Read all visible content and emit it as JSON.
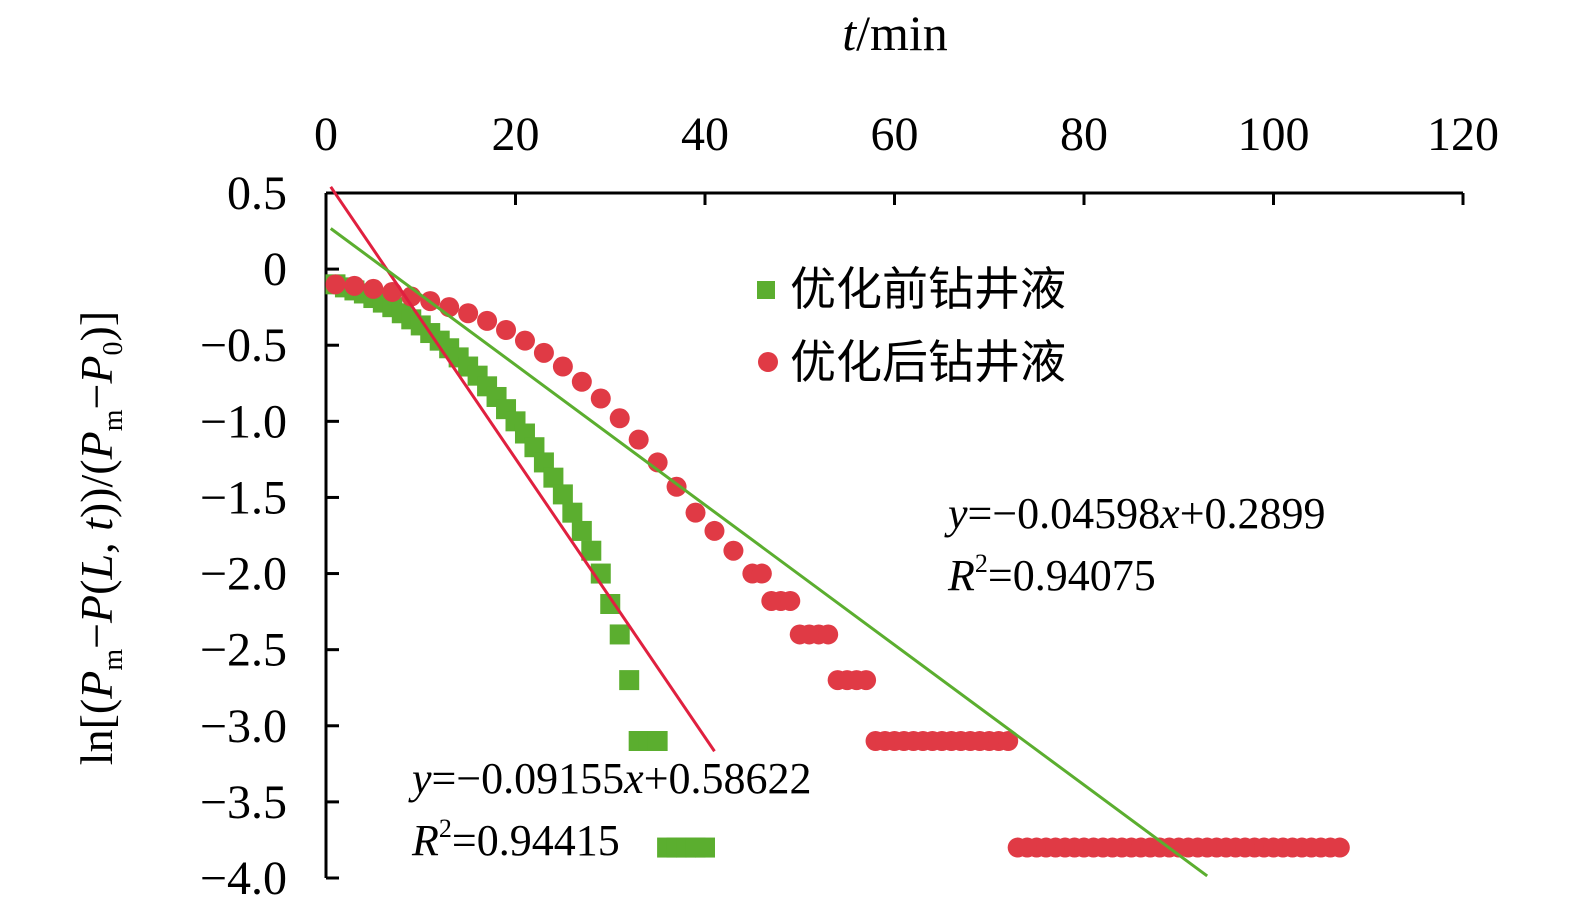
{
  "chart_data": {
    "type": "scatter",
    "xlabel_var": "t",
    "xlabel_unit": "/min",
    "ylabel": "ln[(P_m−P(L, t))/(P_m−P_0)]",
    "xlim": [
      0,
      120
    ],
    "ylim": [
      -4.0,
      0.5
    ],
    "x_ticks": [
      0,
      20,
      40,
      60,
      80,
      100,
      120
    ],
    "y_ticks": [
      0.5,
      0,
      -0.5,
      -1.0,
      -1.5,
      -2.0,
      -2.5,
      -3.0,
      -3.5,
      -4.0
    ],
    "y_tick_labels": [
      "0.5",
      "0",
      "−0.5",
      "−1.0",
      "−1.5",
      "−2.0",
      "−2.5",
      "−3.0",
      "−3.5",
      "−4.0"
    ],
    "x_axis_position": "top",
    "legend_position": "upper-middle",
    "series": [
      {
        "name": "优化前钻井液",
        "color": "#5BAE2F",
        "marker": "square",
        "x": [
          1,
          2,
          3,
          4,
          5,
          6,
          7,
          8,
          9,
          10,
          11,
          12,
          13,
          14,
          15,
          16,
          17,
          18,
          19,
          20,
          21,
          22,
          23,
          24,
          25,
          26,
          27,
          28,
          29,
          30,
          31,
          32,
          33,
          34,
          35,
          36,
          37,
          38,
          39,
          40
        ],
        "y": [
          -0.1,
          -0.12,
          -0.14,
          -0.16,
          -0.19,
          -0.22,
          -0.25,
          -0.29,
          -0.33,
          -0.37,
          -0.42,
          -0.47,
          -0.52,
          -0.58,
          -0.64,
          -0.7,
          -0.77,
          -0.84,
          -0.92,
          -1.0,
          -1.08,
          -1.17,
          -1.27,
          -1.37,
          -1.48,
          -1.6,
          -1.72,
          -1.85,
          -2.0,
          -2.2,
          -2.4,
          -2.7,
          -3.1,
          -3.1,
          -3.1,
          -3.8,
          -3.8,
          -3.8,
          -3.8,
          -3.8
        ]
      },
      {
        "name": "优化后钻井液",
        "color": "#E03A45",
        "marker": "circle",
        "x": [
          1,
          3,
          5,
          7,
          9,
          11,
          13,
          15,
          17,
          19,
          21,
          23,
          25,
          27,
          29,
          31,
          33,
          35,
          37,
          39,
          41,
          43,
          45,
          46,
          47,
          48,
          49,
          50,
          51,
          52,
          53,
          54,
          55,
          56,
          57,
          58,
          59,
          60,
          61,
          62,
          63,
          64,
          65,
          66,
          67,
          68,
          69,
          70,
          71,
          72,
          73,
          74,
          75,
          76,
          77,
          78,
          79,
          80,
          81,
          82,
          83,
          84,
          85,
          86,
          87,
          88,
          89,
          90,
          91,
          92,
          93,
          94,
          95,
          96,
          97,
          98,
          99,
          100,
          101,
          102,
          103,
          104,
          105,
          106,
          107
        ],
        "y": [
          -0.1,
          -0.11,
          -0.13,
          -0.15,
          -0.18,
          -0.21,
          -0.25,
          -0.29,
          -0.34,
          -0.4,
          -0.47,
          -0.55,
          -0.64,
          -0.74,
          -0.85,
          -0.98,
          -1.12,
          -1.27,
          -1.43,
          -1.6,
          -1.72,
          -1.85,
          -2.0,
          -2.0,
          -2.18,
          -2.18,
          -2.18,
          -2.4,
          -2.4,
          -2.4,
          -2.4,
          -2.7,
          -2.7,
          -2.7,
          -2.7,
          -3.1,
          -3.1,
          -3.1,
          -3.1,
          -3.1,
          -3.1,
          -3.1,
          -3.1,
          -3.1,
          -3.1,
          -3.1,
          -3.1,
          -3.1,
          -3.1,
          -3.1,
          -3.8,
          -3.8,
          -3.8,
          -3.8,
          -3.8,
          -3.8,
          -3.8,
          -3.8,
          -3.8,
          -3.8,
          -3.8,
          -3.8,
          -3.8,
          -3.8,
          -3.8,
          -3.8,
          -3.8,
          -3.8,
          -3.8,
          -3.8,
          -3.8,
          -3.8,
          -3.8,
          -3.8,
          -3.8,
          -3.8,
          -3.8,
          -3.8,
          -3.8,
          -3.8,
          -3.8,
          -3.8,
          -3.8,
          -3.8,
          -3.8
        ]
      }
    ],
    "fits": [
      {
        "name": "fit-before",
        "color": "#E0203F",
        "slope": -0.09155,
        "intercept": 0.58622,
        "x_range": [
          0.5,
          41
        ],
        "eq_prefix": "y",
        "eq_text": "=−0.09155",
        "eq_var": "x",
        "eq_suffix": "+0.58622",
        "r2_prefix": "R",
        "r2_sup": "2",
        "r2_text": "=0.94415"
      },
      {
        "name": "fit-after",
        "color": "#5BAE2F",
        "slope": -0.04598,
        "intercept": 0.2899,
        "x_range": [
          0.5,
          93
        ],
        "eq_prefix": "y",
        "eq_text": "=−0.04598",
        "eq_var": "x",
        "eq_suffix": "+0.2899",
        "r2_prefix": "R",
        "r2_sup": "2",
        "r2_text": "=0.94075"
      }
    ]
  }
}
